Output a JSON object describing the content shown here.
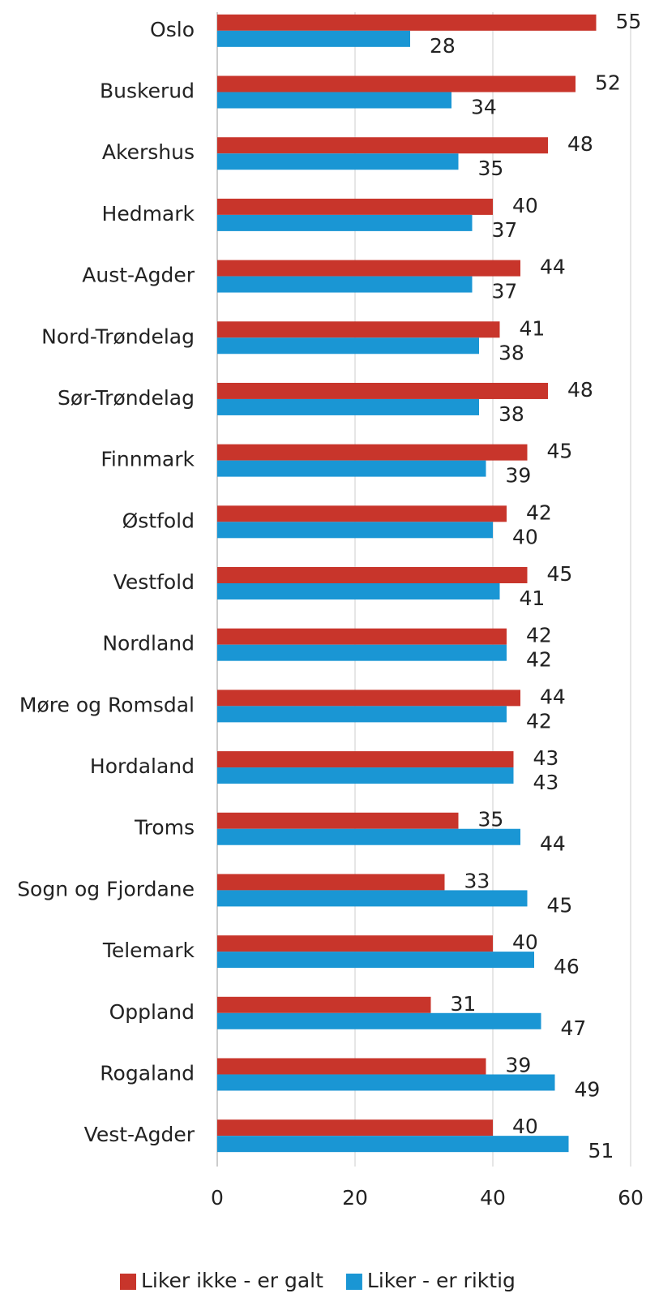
{
  "chart_data": {
    "type": "hbar",
    "categories": [
      "Oslo",
      "Buskerud",
      "Akershus",
      "Hedmark",
      "Aust-Agder",
      "Nord-Trøndelag",
      "Sør-Trøndelag",
      "Finnmark",
      "Østfold",
      "Vestfold",
      "Nordland",
      "Møre og Romsdal",
      "Hordaland",
      "Troms",
      "Sogn og Fjordane",
      "Telemark",
      "Oppland",
      "Rogaland",
      "Vest-Agder"
    ],
    "series": [
      {
        "name": "Liker ikke - er galt",
        "color": "#c8352b",
        "values": [
          55,
          52,
          48,
          40,
          44,
          41,
          48,
          45,
          42,
          45,
          42,
          44,
          43,
          35,
          33,
          40,
          31,
          39,
          40
        ]
      },
      {
        "name": "Liker - er riktig",
        "color": "#1a96d4",
        "values": [
          28,
          34,
          35,
          37,
          37,
          38,
          38,
          39,
          40,
          41,
          42,
          42,
          43,
          44,
          45,
          46,
          47,
          49,
          51
        ]
      }
    ],
    "xlim": [
      0,
      60
    ],
    "xticks": [
      0,
      20,
      40,
      60
    ],
    "grid": true,
    "legend": "bottom"
  }
}
